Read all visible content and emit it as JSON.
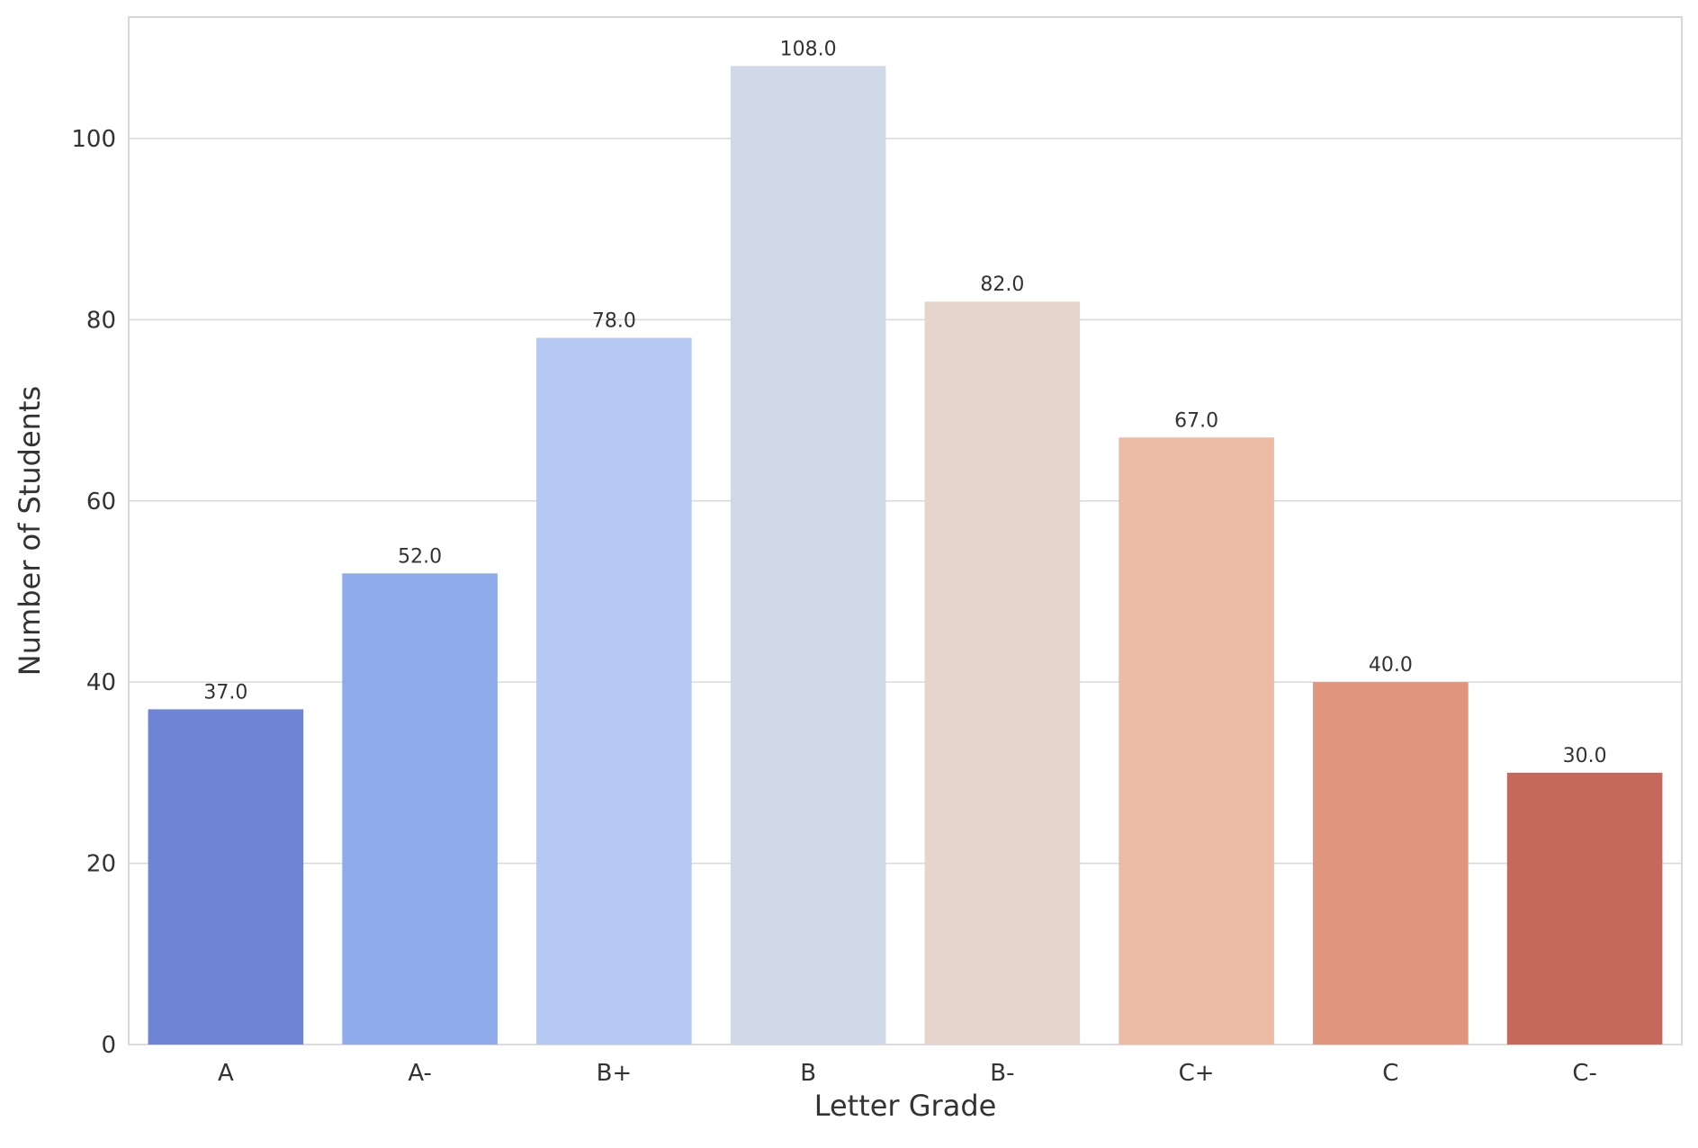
{
  "chart_data": {
    "type": "bar",
    "x_label": "Letter Grade",
    "y_label": "Number of Students",
    "categories": [
      "A",
      "A-",
      "B+",
      "B",
      "B-",
      "C+",
      "C",
      "C-"
    ],
    "values": [
      37,
      52,
      78,
      108,
      82,
      67,
      40,
      30
    ],
    "value_labels": [
      "37.0",
      "52.0",
      "78.0",
      "108.0",
      "82.0",
      "67.0",
      "40.0",
      "30.0"
    ],
    "colors": [
      "#6e84d5",
      "#8fabea",
      "#b5c9f2",
      "#d0d9e7",
      "#e6d5cc",
      "#ecbba4",
      "#e0957d",
      "#c7685c"
    ],
    "ylim": [
      0,
      113.4
    ],
    "yticks": [
      0,
      20,
      40,
      60,
      80,
      100
    ],
    "grid": true
  }
}
